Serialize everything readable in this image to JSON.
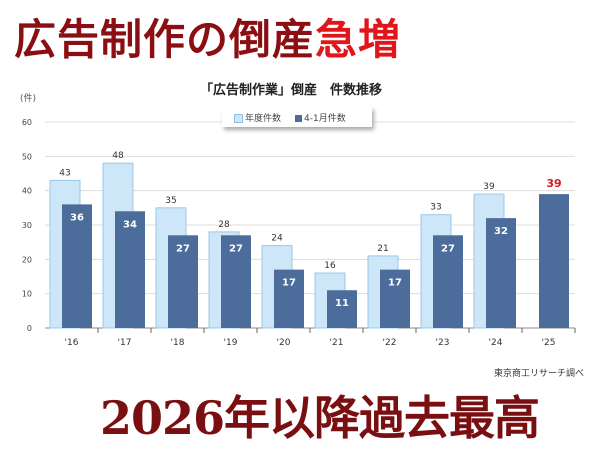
{
  "headline": {
    "main": "広告制作の倒産",
    "accent": "急増"
  },
  "footline": "2026年以降過去最高",
  "source": "東京商工リサーチ調べ",
  "colors": {
    "fiscal": "#cde6f8",
    "partial": "#4c6c9b",
    "highlight": "#e0161b"
  },
  "chart_data": {
    "type": "bar",
    "title": "「広告制作業」倒産　件数推移",
    "ylabel": "(件)",
    "ylim": [
      0,
      60
    ],
    "yticks": [
      0,
      10,
      20,
      30,
      40,
      50,
      60
    ],
    "categories": [
      "'16",
      "'17",
      "'18",
      "'19",
      "'20",
      "'21",
      "'22",
      "'23",
      "'24",
      "'25"
    ],
    "series": [
      {
        "name": "年度件数",
        "values": [
          43,
          48,
          35,
          28,
          24,
          16,
          21,
          33,
          39,
          null
        ]
      },
      {
        "name": "4-1月件数",
        "values": [
          36,
          34,
          27,
          27,
          17,
          11,
          17,
          27,
          32,
          39
        ]
      }
    ],
    "legend_position": "top-center",
    "grid": true
  }
}
